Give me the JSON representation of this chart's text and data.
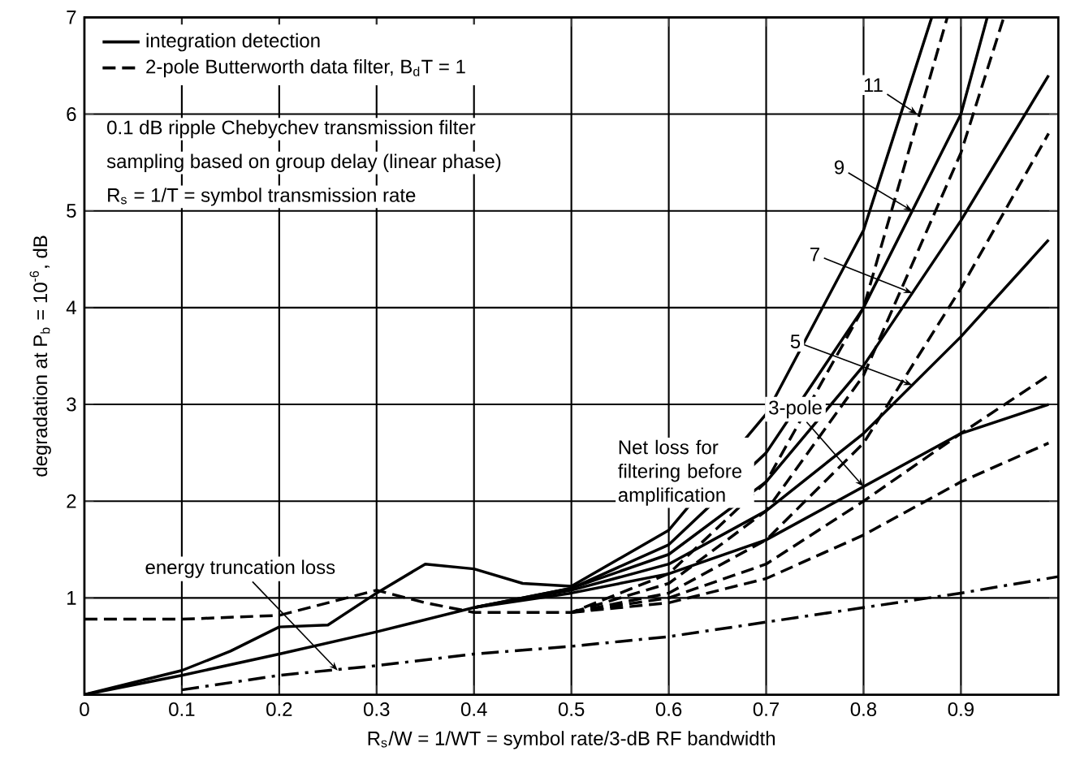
{
  "chart_data": {
    "type": "line",
    "xlabel": "R$_{s}$/W = 1/WT = symbol rate/3-dB RF bandwidth",
    "ylabel": "degradation at P$_{b}$ = 10$^{-6}$, dB",
    "xlim": [
      0,
      1.0
    ],
    "ylim": [
      0,
      7
    ],
    "xticks": [
      0,
      0.1,
      0.2,
      0.3,
      0.4,
      0.5,
      0.6,
      0.7,
      0.8,
      0.9
    ],
    "yticks": [
      1,
      2,
      3,
      4,
      5,
      6,
      7
    ],
    "grid": true,
    "legend": "top left",
    "series": [
      {
        "name": "integration detection",
        "color": "#000000",
        "line_style": "solid",
        "x": [
          0,
          0.1,
          0.15,
          0.2,
          0.25,
          0.3,
          0.35,
          0.4,
          0.45,
          0.5,
          0.6,
          0.7,
          0.8,
          0.87
        ],
        "values": [
          0,
          0.25,
          0.45,
          0.7,
          0.72,
          1.05,
          1.35,
          1.3,
          1.15,
          1.12,
          1.7,
          2.9,
          4.8,
          7
        ]
      },
      {
        "color": "#000000",
        "line_style": "solid",
        "x": [
          0,
          0.1,
          0.2,
          0.3,
          0.4,
          0.5,
          0.6,
          0.7,
          0.8,
          0.9,
          0.927
        ],
        "values": [
          0,
          0.2,
          0.42,
          0.65,
          0.9,
          1.1,
          1.55,
          2.5,
          4.0,
          6.0,
          7
        ]
      },
      {
        "color": "#000000",
        "line_style": "solid",
        "x": [
          0.4,
          0.5,
          0.6,
          0.7,
          0.8,
          0.9,
          0.99
        ],
        "values": [
          0.9,
          1.1,
          1.45,
          2.2,
          3.4,
          4.9,
          6.4
        ]
      },
      {
        "color": "#000000",
        "line_style": "solid",
        "x": [
          0.4,
          0.5,
          0.6,
          0.7,
          0.8,
          0.9,
          0.99
        ],
        "values": [
          0.9,
          1.08,
          1.35,
          1.9,
          2.7,
          3.7,
          4.7
        ]
      },
      {
        "color": "#000000",
        "line_style": "solid",
        "x": [
          0.4,
          0.5,
          0.6,
          0.7,
          0.8,
          0.9,
          0.99
        ],
        "values": [
          0.9,
          1.05,
          1.25,
          1.6,
          2.15,
          2.7,
          3.0
        ]
      },
      {
        "name": "2-pole Butterworth data filter, B$_{d}$T = 1",
        "color": "#000000",
        "line_style": "dashed",
        "x": [
          0,
          0.1,
          0.2,
          0.25,
          0.3,
          0.35,
          0.4,
          0.5,
          0.6,
          0.7,
          0.8,
          0.886
        ],
        "values": [
          0.78,
          0.78,
          0.82,
          0.95,
          1.08,
          0.95,
          0.85,
          0.85,
          1.25,
          2.2,
          4.0,
          7
        ]
      },
      {
        "color": "#000000",
        "line_style": "dashed",
        "x": [
          0.5,
          0.6,
          0.7,
          0.8,
          0.9,
          0.944
        ],
        "values": [
          0.85,
          1.15,
          1.9,
          3.3,
          5.6,
          7
        ]
      },
      {
        "color": "#000000",
        "line_style": "dashed",
        "x": [
          0.5,
          0.6,
          0.7,
          0.8,
          0.9,
          0.99
        ],
        "values": [
          0.85,
          1.05,
          1.6,
          2.6,
          4.2,
          5.8
        ]
      },
      {
        "color": "#000000",
        "line_style": "dashed",
        "x": [
          0.5,
          0.6,
          0.7,
          0.8,
          0.9,
          0.99
        ],
        "values": [
          0.85,
          1.0,
          1.35,
          2.0,
          2.7,
          3.3
        ]
      },
      {
        "color": "#000000",
        "line_style": "dashed",
        "x": [
          0.5,
          0.6,
          0.7,
          0.8,
          0.9,
          0.99
        ],
        "values": [
          0.85,
          0.95,
          1.2,
          1.65,
          2.2,
          2.6
        ]
      },
      {
        "color": "#000000",
        "line_style": "dashdot",
        "x": [
          0.1,
          0.2,
          0.3,
          0.4,
          0.5,
          0.6,
          0.7,
          0.8,
          0.9,
          1.0
        ],
        "values": [
          0.05,
          0.2,
          0.3,
          0.42,
          0.5,
          0.6,
          0.75,
          0.9,
          1.05,
          1.22
        ]
      }
    ],
    "annotations": [
      "0.1 dB ripple Chebychev transmission filter",
      "sampling based on group delay (linear phase)",
      "R$_{s}$ = 1/T = symbol transmission rate",
      {
        "text": "11",
        "x": 0.855,
        "y": 6.0
      },
      {
        "text": "9",
        "x": 0.85,
        "y": 5.0
      },
      {
        "text": "7",
        "x": 0.85,
        "y": 4.15
      },
      {
        "text": "5",
        "x": 0.85,
        "y": 3.2
      },
      {
        "text": "3-pole",
        "x": 0.8,
        "y": 2.15
      },
      "Net loss for filtering before amplification",
      {
        "text": "energy truncation loss",
        "x": 0.26,
        "y": 0.25
      }
    ]
  }
}
